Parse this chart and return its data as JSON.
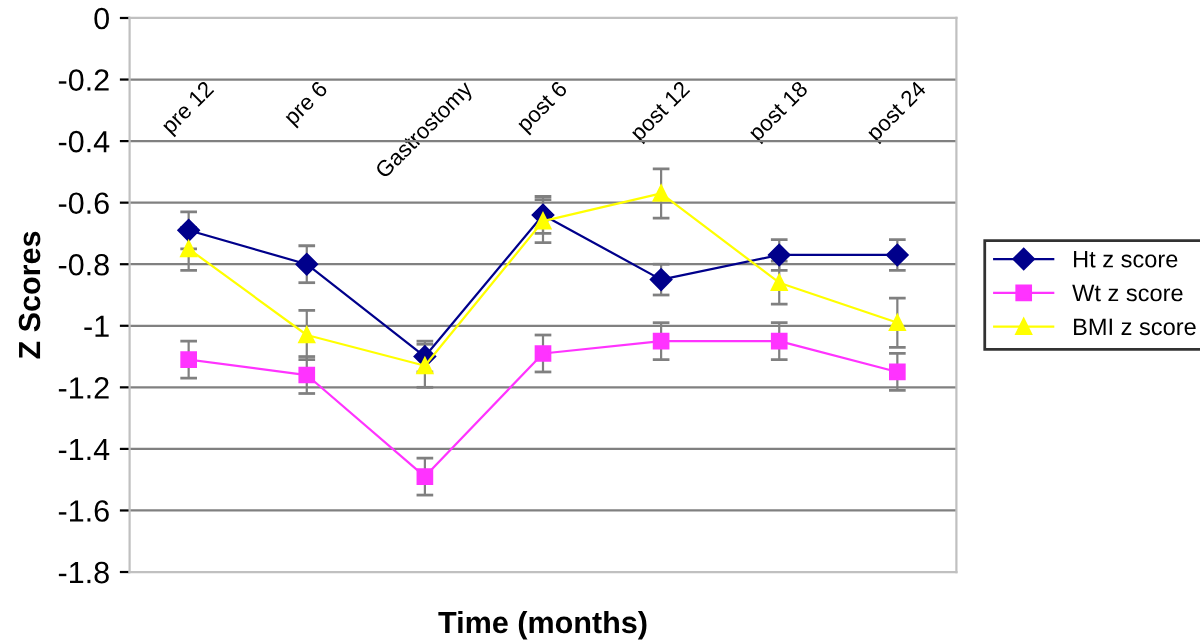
{
  "chart_data": {
    "type": "line",
    "xlabel": "Time (months)",
    "ylabel": "Z Scores",
    "categories": [
      "pre 12",
      "pre 6",
      "Gastrostomy",
      "post 6",
      "post 12",
      "post 18",
      "post 24"
    ],
    "series": [
      {
        "name": "Ht z score",
        "color": "#00008b",
        "marker": "diamond",
        "values": [
          -0.69,
          -0.8,
          -1.1,
          -0.64,
          -0.85,
          -0.77,
          -0.77
        ],
        "errors": [
          0.06,
          0.06,
          0.05,
          0.06,
          0.05,
          0.05,
          0.05
        ]
      },
      {
        "name": "Wt z score",
        "color": "#ff33ff",
        "marker": "square",
        "values": [
          -1.11,
          -1.16,
          -1.49,
          -1.09,
          -1.05,
          -1.05,
          -1.15
        ],
        "errors": [
          0.06,
          0.06,
          0.06,
          0.06,
          0.06,
          0.06,
          0.06
        ]
      },
      {
        "name": "BMI z score",
        "color": "#ffff00",
        "marker": "triangle",
        "values": [
          -0.75,
          -1.03,
          -1.13,
          -0.66,
          -0.57,
          -0.86,
          -0.99
        ],
        "errors": [
          0.07,
          0.08,
          0.07,
          0.07,
          0.08,
          0.07,
          0.08
        ]
      }
    ],
    "ylim": [
      -1.8,
      0
    ],
    "yticks": [
      {
        "value": 0,
        "label": "0"
      },
      -0.2,
      -0.4,
      -0.6,
      -0.8,
      {
        "value": -1,
        "label": "-1"
      },
      -1.2,
      -1.4,
      -1.6,
      -1.8
    ],
    "grid": "y",
    "legend": "right"
  }
}
